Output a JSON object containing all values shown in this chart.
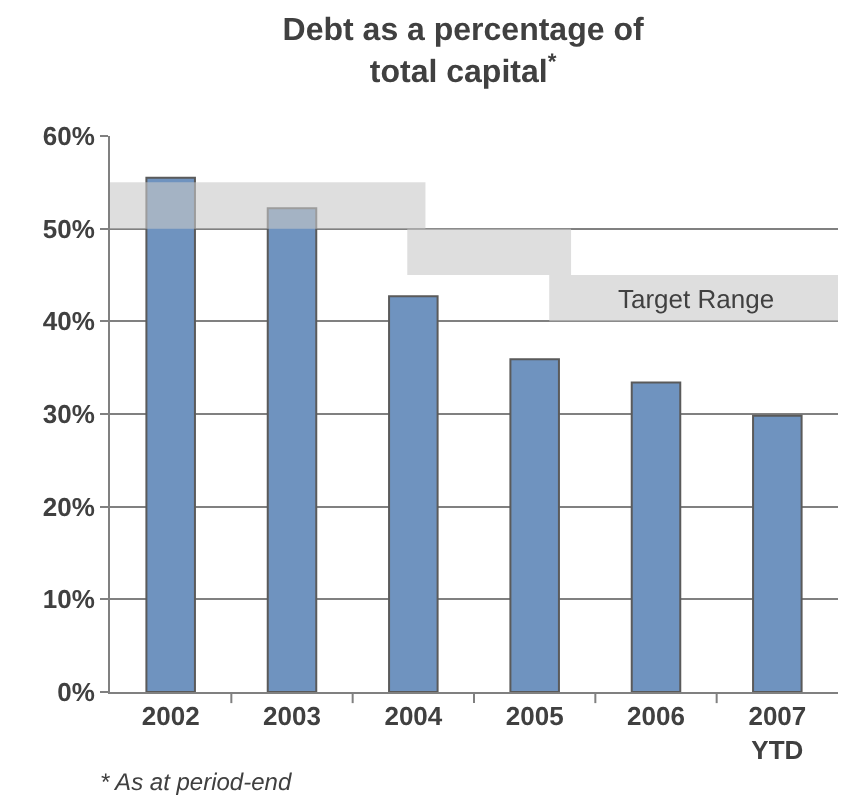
{
  "chart_data": {
    "type": "bar",
    "title": "Debt as a percentage of\ntotal capital$^{*}$",
    "categories": [
      "2002",
      "2003",
      "2004",
      "2005",
      "2006",
      "2007\nYTD"
    ],
    "values": [
      55.5,
      52.2,
      42.7,
      35.9,
      33.4,
      29.8
    ],
    "color": "#6f93bf",
    "ylim": [
      0,
      60
    ],
    "yticks": [
      {
        "value": 0,
        "label": "0%"
      },
      {
        "value": 10,
        "label": "10%"
      },
      {
        "value": 20,
        "label": "20%"
      },
      {
        "value": 30,
        "label": "30%"
      },
      {
        "value": 40,
        "label": "40%"
      },
      {
        "value": 50,
        "label": "50%"
      },
      {
        "value": 60,
        "label": "60%"
      }
    ],
    "grid": "y",
    "bands": [
      {
        "axis": "y",
        "from": 50,
        "to": 55,
        "color": "#c8c8c8"
      },
      {
        "axis": "y",
        "from": 45,
        "to": 50,
        "color": "#c8c8c8"
      },
      {
        "axis": "y",
        "from": 40,
        "to": 45,
        "color": "#c8c8c8",
        "label": "Target Range"
      }
    ],
    "annotations": [
      "* As at period-end"
    ]
  }
}
